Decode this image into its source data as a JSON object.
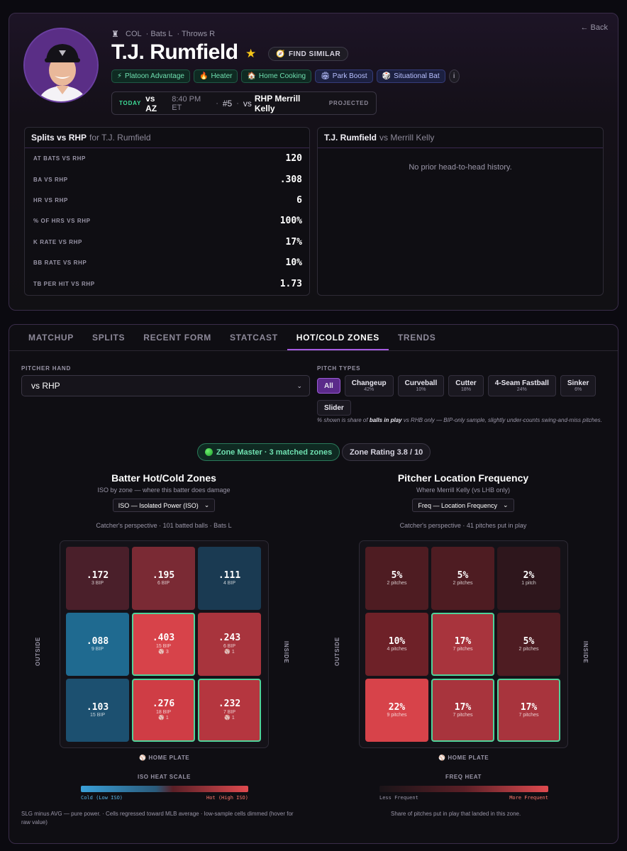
{
  "header": {
    "back_label": "← Back",
    "team": "COL",
    "bats": "· Bats L",
    "throws": "· Throws R",
    "player_name": "T.J. Rumfield",
    "find_similar_label": "FIND SIMILAR",
    "badges": [
      {
        "icon": "⚡",
        "label": "Platoon Advantage",
        "tone": "green"
      },
      {
        "icon": "🔥",
        "label": "Heater",
        "tone": "green"
      },
      {
        "icon": "🏠",
        "label": "Home Cooking",
        "tone": "green"
      },
      {
        "icon": "🏟",
        "label": "Park Boost",
        "tone": "blue"
      },
      {
        "icon": "🎲",
        "label": "Situational Bat",
        "tone": "blue"
      }
    ],
    "info_label": "i",
    "today": {
      "tag": "TODAY",
      "opponent": "vs AZ",
      "time": "8:40 PM ET",
      "sep": "·",
      "order": "#5",
      "vs": "vs",
      "pitcher": "RHP Merrill Kelly",
      "status": "PROJECTED"
    }
  },
  "splits": {
    "title": "Splits vs RHP",
    "title_suffix": "for T.J. Rumfield",
    "rows": [
      {
        "label": "AT BATS VS RHP",
        "value": "120"
      },
      {
        "label": "BA VS RHP",
        "value": ".308"
      },
      {
        "label": "HR VS RHP",
        "value": "6"
      },
      {
        "label": "% OF HRS VS RHP",
        "value": "100%"
      },
      {
        "label": "K RATE VS RHP",
        "value": "17%"
      },
      {
        "label": "BB RATE VS RHP",
        "value": "10%"
      },
      {
        "label": "TB PER HIT VS RHP",
        "value": "1.73"
      }
    ]
  },
  "h2h": {
    "batter": "T.J. Rumfield",
    "suffix": "vs Merrill Kelly",
    "empty_message": "No prior head-to-head history."
  },
  "tabs": [
    "MATCHUP",
    "SPLITS",
    "RECENT FORM",
    "STATCAST",
    "HOT/COLD ZONES",
    "TRENDS"
  ],
  "active_tab": "HOT/COLD ZONES",
  "filters": {
    "pitcher_hand_label": "PITCHER HAND",
    "pitcher_hand_value": "vs RHP",
    "pitch_types_label": "PITCH TYPES",
    "pitch_types": [
      {
        "name": "All",
        "pct": ""
      },
      {
        "name": "Changeup",
        "pct": "42%"
      },
      {
        "name": "Curveball",
        "pct": "10%"
      },
      {
        "name": "Cutter",
        "pct": "18%"
      },
      {
        "name": "4-Seam Fastball",
        "pct": "24%"
      },
      {
        "name": "Sinker",
        "pct": "6%"
      },
      {
        "name": "Slider",
        "pct": ""
      }
    ],
    "note_pre": "% shown is share of ",
    "note_bold": "balls in play",
    "note_post": " vs RHB only — BIP-only sample, slightly under-counts swing-and-miss pitches."
  },
  "pills": {
    "zone_master": "Zone Master · 3 matched zones",
    "zone_rating": "Zone Rating 3.8 / 10"
  },
  "batter_zones": {
    "title": "Batter Hot/Cold Zones",
    "subtitle": "ISO by zone — where this batter does damage",
    "select": "ISO — Isolated Power (ISO)",
    "perspective": "Catcher's perspective · 101 batted balls · Bats L",
    "outside_label": "OUTSIDE",
    "inside_label": "INSIDE",
    "home_plate": "HOME PLATE",
    "cells": [
      {
        "value": ".172",
        "sub": "3 BIP",
        "hr": "",
        "color": "#4a1f2a",
        "hl": false
      },
      {
        "value": ".195",
        "sub": "6 BIP",
        "hr": "",
        "color": "#7a2a34",
        "hl": false
      },
      {
        "value": ".111",
        "sub": "4 BIP",
        "hr": "",
        "color": "#1a3a52",
        "hl": false
      },
      {
        "value": ".088",
        "sub": "9 BIP",
        "hr": "",
        "color": "#1f6a90",
        "hl": false
      },
      {
        "value": ".403",
        "sub": "15 BIP",
        "hr": "⚾ 3",
        "color": "#d7434a",
        "hl": true
      },
      {
        "value": ".243",
        "sub": "6 BIP",
        "hr": "⚾ 1",
        "color": "#a8343d",
        "hl": false
      },
      {
        "value": ".103",
        "sub": "15 BIP",
        "hr": "",
        "color": "#1c5070",
        "hl": false
      },
      {
        "value": ".276",
        "sub": "18 BIP",
        "hr": "⚾ 1",
        "color": "#cf3d45",
        "hl": true
      },
      {
        "value": ".232",
        "sub": "7 BIP",
        "hr": "⚾ 1",
        "color": "#b5363f",
        "hl": true
      }
    ],
    "scale_title": "ISO HEAT SCALE",
    "scale_low": "Cold (Low ISO)",
    "scale_high": "Hot (High ISO)",
    "footnote": "SLG minus AVG — pure power. · Cells regressed toward MLB average · low-sample cells dimmed (hover for raw value)"
  },
  "pitcher_zones": {
    "title": "Pitcher Location Frequency",
    "subtitle": "Where Merrill Kelly (vs LHB only)",
    "select": "Freq — Location Frequency",
    "perspective": "Catcher's perspective · 41 pitches put in play",
    "outside_label": "OUTSIDE",
    "inside_label": "INSIDE",
    "home_plate": "HOME PLATE",
    "cells": [
      {
        "value": "5%",
        "sub": "2 pitches",
        "hr": "",
        "color": "#4e1c22",
        "hl": false
      },
      {
        "value": "5%",
        "sub": "2 pitches",
        "hr": "",
        "color": "#4e1c22",
        "hl": false
      },
      {
        "value": "2%",
        "sub": "1 pitch",
        "hr": "",
        "color": "#2e161c",
        "hl": false
      },
      {
        "value": "10%",
        "sub": "4 pitches",
        "hr": "",
        "color": "#6e2128",
        "hl": false
      },
      {
        "value": "17%",
        "sub": "7 pitches",
        "hr": "",
        "color": "#a8343d",
        "hl": true
      },
      {
        "value": "5%",
        "sub": "2 pitches",
        "hr": "",
        "color": "#4e1c22",
        "hl": false
      },
      {
        "value": "22%",
        "sub": "9 pitches",
        "hr": "",
        "color": "#d7434a",
        "hl": false
      },
      {
        "value": "17%",
        "sub": "7 pitches",
        "hr": "",
        "color": "#a8343d",
        "hl": true
      },
      {
        "value": "17%",
        "sub": "7 pitches",
        "hr": "",
        "color": "#a8343d",
        "hl": true
      }
    ],
    "scale_title": "FREQ HEAT",
    "scale_low": "Less Frequent",
    "scale_high": "More Frequent",
    "footnote": "Share of pitches put in play that landed in this zone."
  },
  "colors": {
    "accent_purple": "#a55be0",
    "hot": "#d7434a",
    "cold": "#3aa0d8",
    "highlight": "#4fd39a"
  }
}
